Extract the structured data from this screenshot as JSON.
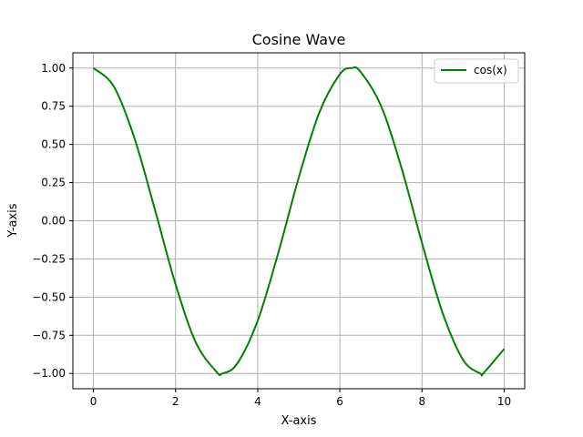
{
  "chart_data": {
    "type": "line",
    "title": "Cosine Wave",
    "xlabel": "X-axis",
    "ylabel": "Y-axis",
    "xlim": [
      -0.5,
      10.5
    ],
    "ylim": [
      -1.1,
      1.1
    ],
    "x_ticks": [
      0,
      2,
      4,
      6,
      8,
      10
    ],
    "y_ticks": [
      -1.0,
      -0.75,
      -0.5,
      -0.25,
      0.0,
      0.25,
      0.5,
      0.75,
      1.0
    ],
    "x_tick_labels": [
      "0",
      "2",
      "4",
      "6",
      "8",
      "10"
    ],
    "y_tick_labels": [
      "−1.00",
      "−0.75",
      "−0.50",
      "−0.25",
      "0.00",
      "0.25",
      "0.50",
      "0.75",
      "1.00"
    ],
    "grid": true,
    "legend_position": "top-right",
    "series": [
      {
        "name": "cos(x)",
        "color": "#008000",
        "x": [
          0,
          0.5,
          1,
          1.5,
          2,
          2.5,
          3,
          3.14,
          3.5,
          4,
          4.5,
          5,
          5.5,
          6,
          6.28,
          6.5,
          7,
          7.5,
          8,
          8.5,
          9,
          9.42,
          9.5,
          10
        ],
        "y": [
          1.0,
          0.878,
          0.54,
          0.071,
          -0.416,
          -0.801,
          -0.99,
          -1.0,
          -0.936,
          -0.654,
          -0.211,
          0.284,
          0.709,
          0.96,
          1.0,
          0.977,
          0.754,
          0.347,
          -0.146,
          -0.602,
          -0.911,
          -1.0,
          -0.997,
          -0.839
        ]
      }
    ]
  }
}
